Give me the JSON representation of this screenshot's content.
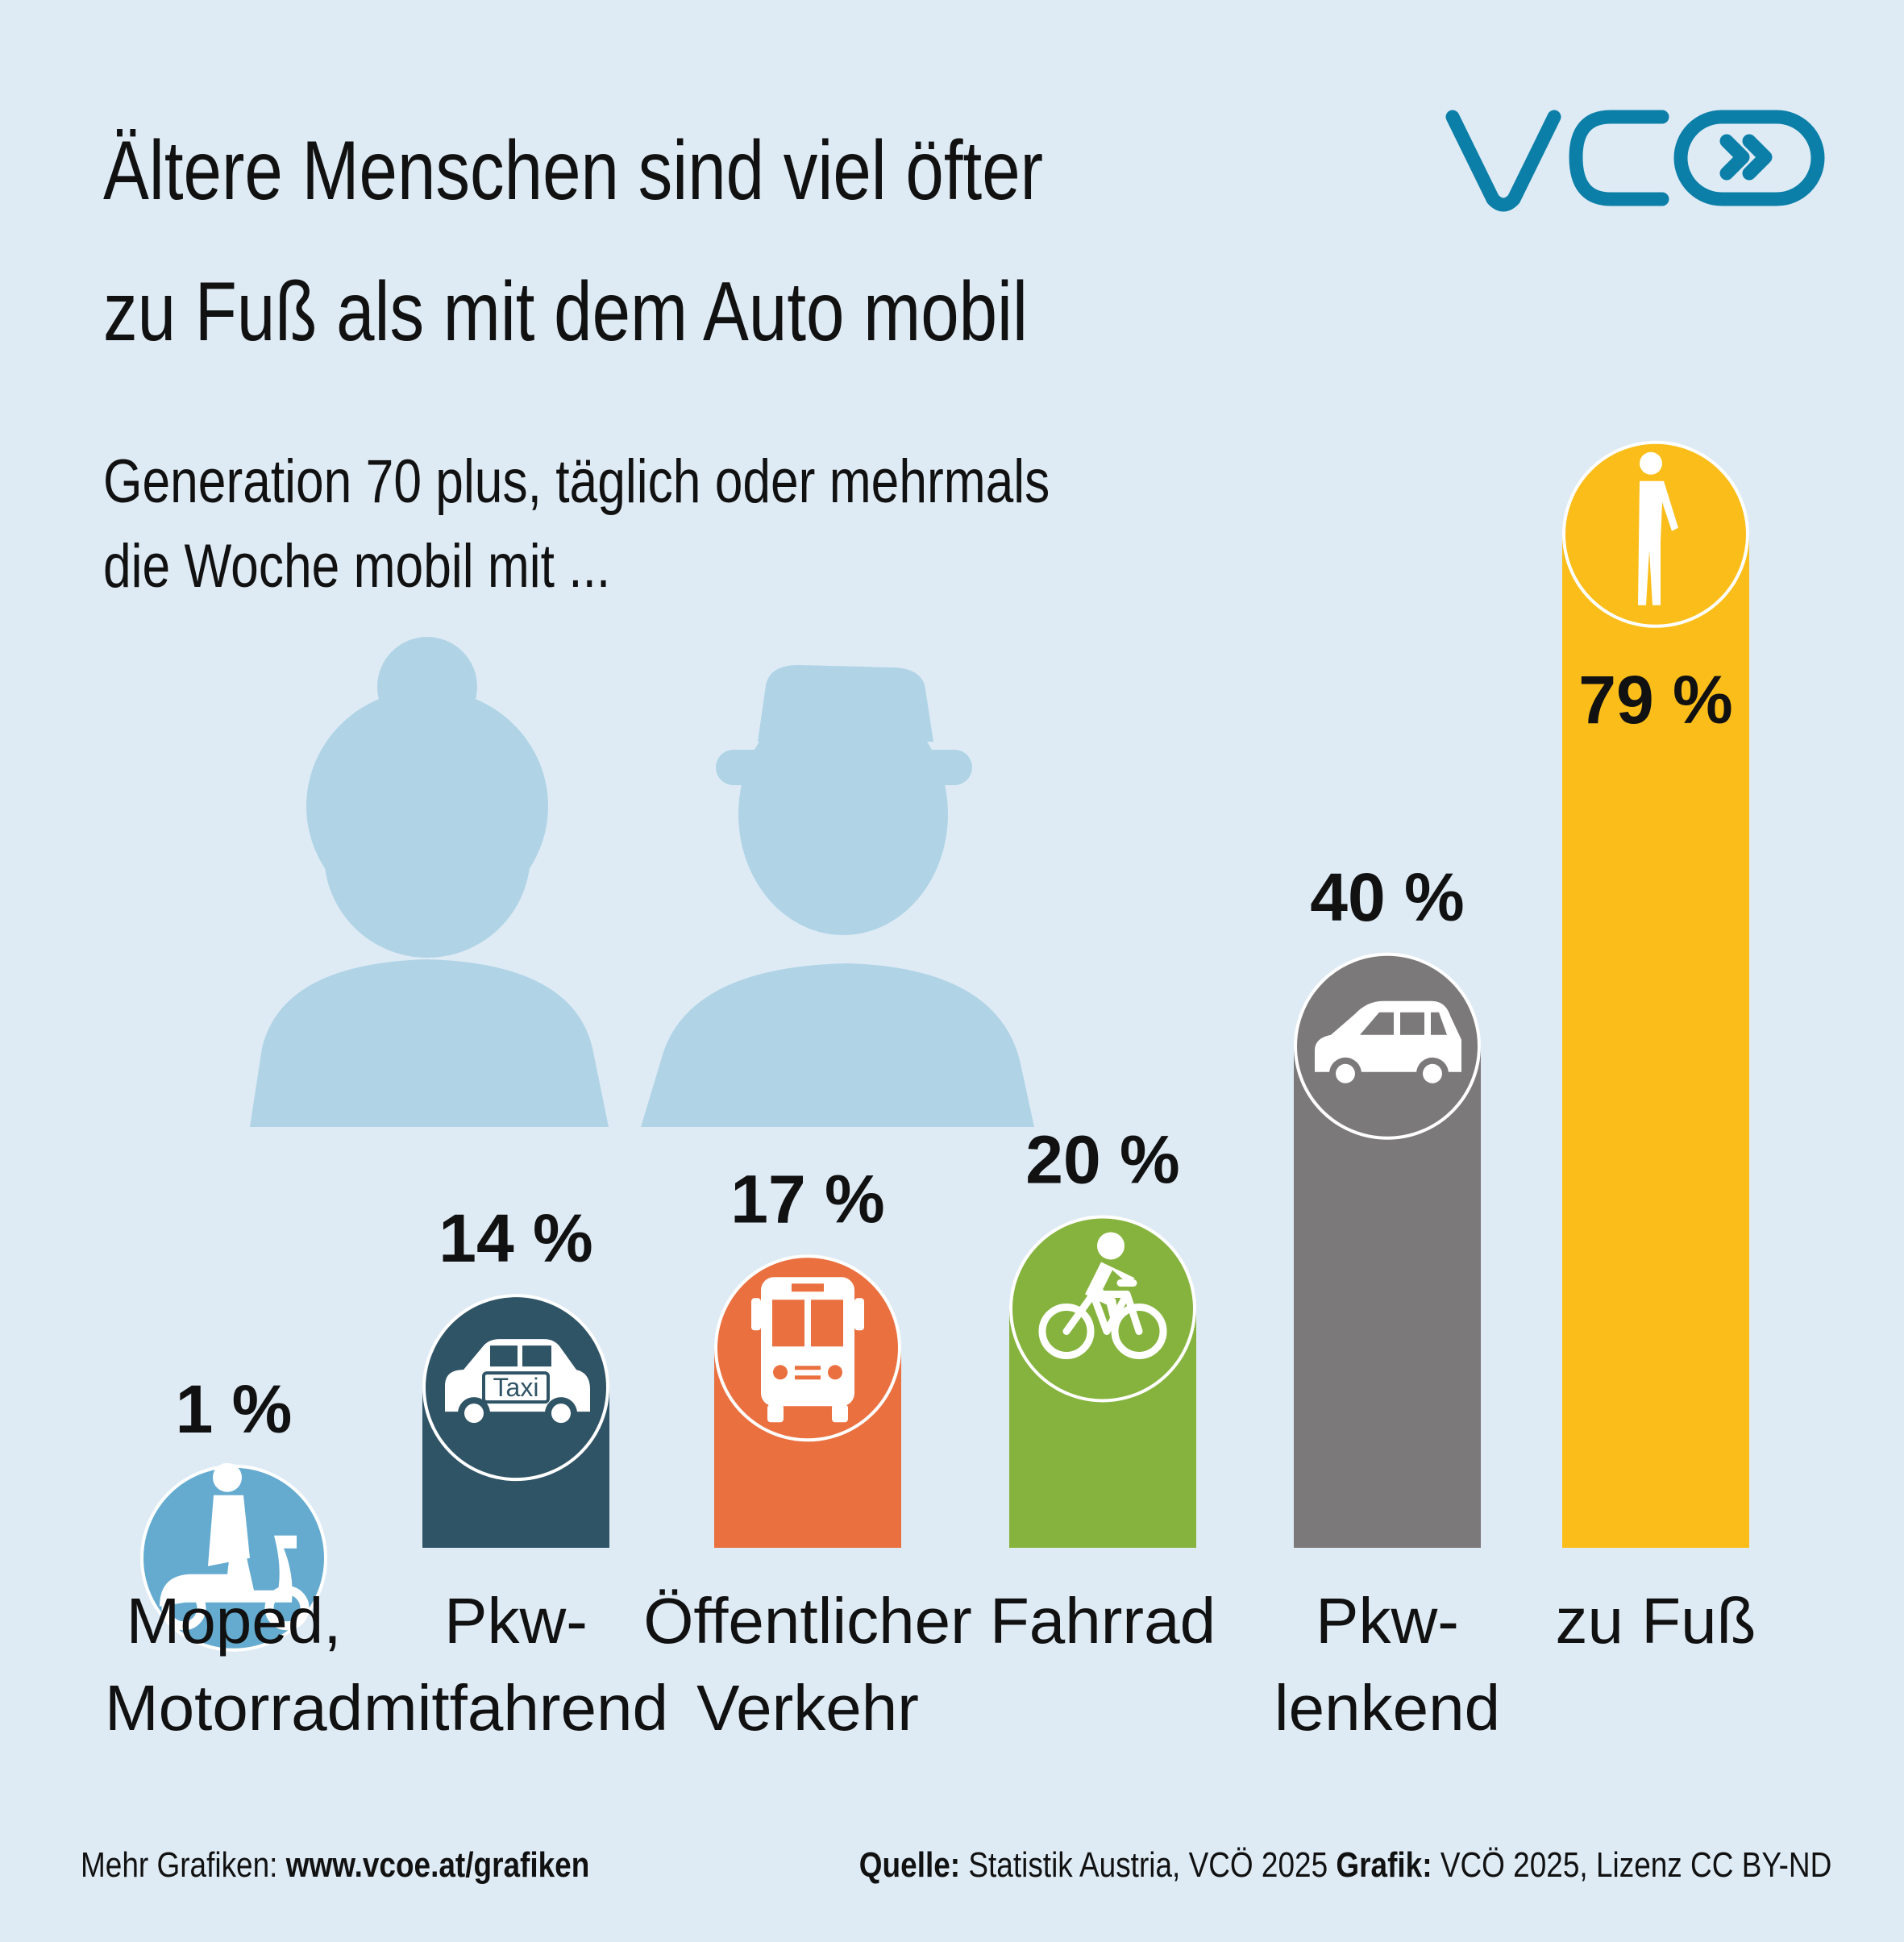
{
  "title": {
    "line1": "Ältere Menschen sind viel öfter",
    "line2": "zu Fuß als mit dem Auto mobil"
  },
  "subtitle": {
    "line1": "Generation 70 plus, täglich oder mehrmals",
    "line2": "die Woche mobil mit ..."
  },
  "logo": {
    "name": "vcoe-logo",
    "text": "VCÖ",
    "color": "#0c7fa8"
  },
  "chart_data": {
    "type": "bar",
    "unit": "%",
    "ylim": [
      0,
      100
    ],
    "grid": false,
    "legend": "none",
    "categories": [
      "Moped, Motorrad",
      "Pkw-mitfahrend",
      "Öffentlicher Verkehr",
      "Fahrrad",
      "Pkw-lenkend",
      "zu Fuß"
    ],
    "values": [
      1,
      14,
      17,
      20,
      40,
      79
    ],
    "bars": [
      {
        "label_lines": [
          "Moped,",
          "Motorrad"
        ],
        "value": 1,
        "value_label": "1 %",
        "color": "#65abd0",
        "icon": "scooter-icon"
      },
      {
        "label_lines": [
          "Pkw-",
          "mitfahrend"
        ],
        "value": 14,
        "value_label": "14 %",
        "color": "#2f5465",
        "icon": "taxi-icon",
        "icon_text": "Taxi"
      },
      {
        "label_lines": [
          "Öffentlicher",
          "Verkehr"
        ],
        "value": 17,
        "value_label": "17 %",
        "color": "#ea7040",
        "icon": "bus-icon"
      },
      {
        "label_lines": [
          "Fahrrad"
        ],
        "value": 20,
        "value_label": "20 %",
        "color": "#86b33e",
        "icon": "bicycle-icon"
      },
      {
        "label_lines": [
          "Pkw-",
          "lenkend"
        ],
        "value": 40,
        "value_label": "40 %",
        "color": "#7b797a",
        "icon": "car-icon"
      },
      {
        "label_lines": [
          "zu Fuß"
        ],
        "value": 79,
        "value_label": "79 %",
        "color": "#fbbd19",
        "icon": "pedestrian-icon"
      }
    ]
  },
  "footer": {
    "more_prefix": "Mehr Grafiken: ",
    "more_link": "www.vcoe.at/grafiken",
    "source_label": "Quelle:",
    "source_text": " Statistik Austria, VCÖ 2025 ",
    "graphic_label": "Grafik:",
    "graphic_text": " VCÖ 2025, Lizenz CC BY-ND"
  }
}
